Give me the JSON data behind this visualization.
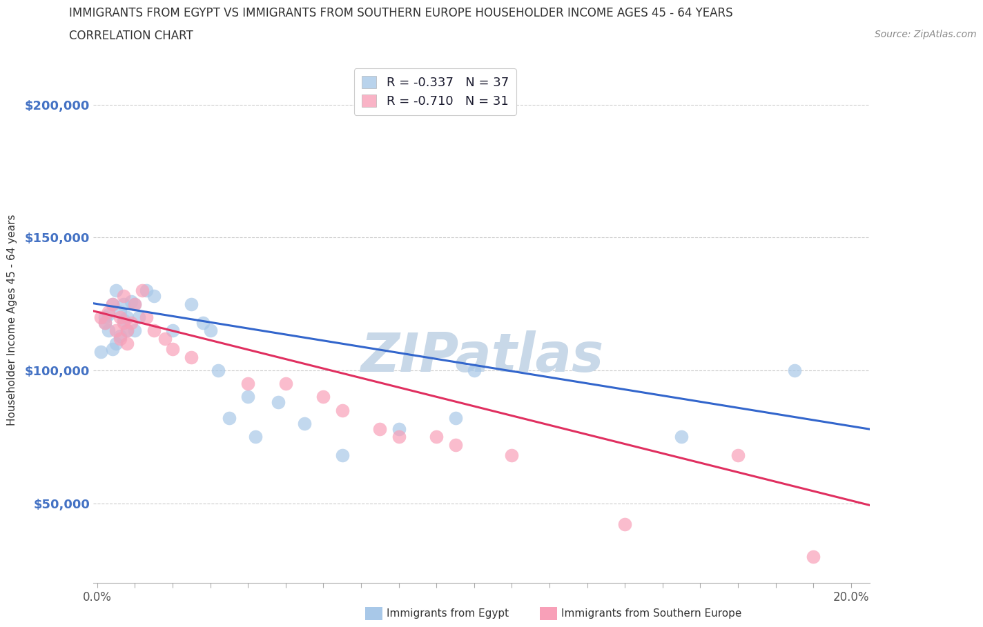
{
  "title_line1": "IMMIGRANTS FROM EGYPT VS IMMIGRANTS FROM SOUTHERN EUROPE HOUSEHOLDER INCOME AGES 45 - 64 YEARS",
  "title_line2": "CORRELATION CHART",
  "source_text": "Source: ZipAtlas.com",
  "ylabel": "Householder Income Ages 45 - 64 years",
  "xlim": [
    -0.001,
    0.205
  ],
  "ylim": [
    20000,
    218000
  ],
  "y_ticks": [
    50000,
    100000,
    150000,
    200000
  ],
  "y_tick_labels": [
    "$50,000",
    "$100,000",
    "$150,000",
    "$200,000"
  ],
  "egypt_color": "#a8c8e8",
  "southern_europe_color": "#f8a0b8",
  "egypt_R": -0.337,
  "egypt_N": 37,
  "southern_europe_R": -0.71,
  "southern_europe_N": 31,
  "egypt_x": [
    0.001,
    0.002,
    0.002,
    0.003,
    0.003,
    0.004,
    0.004,
    0.005,
    0.005,
    0.006,
    0.006,
    0.007,
    0.007,
    0.008,
    0.008,
    0.009,
    0.01,
    0.01,
    0.011,
    0.013,
    0.015,
    0.02,
    0.025,
    0.028,
    0.03,
    0.032,
    0.035,
    0.04,
    0.042,
    0.048,
    0.055,
    0.065,
    0.08,
    0.095,
    0.1,
    0.155,
    0.185
  ],
  "egypt_y": [
    107000,
    120000,
    118000,
    115000,
    121000,
    108000,
    125000,
    110000,
    130000,
    113000,
    122000,
    119000,
    125000,
    115000,
    120000,
    126000,
    115000,
    125000,
    120000,
    130000,
    128000,
    115000,
    125000,
    118000,
    115000,
    100000,
    82000,
    90000,
    75000,
    88000,
    80000,
    68000,
    78000,
    82000,
    100000,
    75000,
    100000
  ],
  "southern_europe_x": [
    0.001,
    0.002,
    0.003,
    0.004,
    0.005,
    0.006,
    0.006,
    0.007,
    0.007,
    0.008,
    0.008,
    0.009,
    0.01,
    0.012,
    0.013,
    0.015,
    0.018,
    0.02,
    0.025,
    0.04,
    0.05,
    0.06,
    0.065,
    0.075,
    0.08,
    0.09,
    0.095,
    0.11,
    0.14,
    0.17,
    0.19
  ],
  "southern_europe_y": [
    120000,
    118000,
    122000,
    125000,
    115000,
    120000,
    112000,
    118000,
    128000,
    115000,
    110000,
    118000,
    125000,
    130000,
    120000,
    115000,
    112000,
    108000,
    105000,
    95000,
    95000,
    90000,
    85000,
    78000,
    75000,
    75000,
    72000,
    68000,
    42000,
    68000,
    30000
  ],
  "watermark": "ZIPatlas",
  "watermark_color": "#c8d8e8",
  "legend_egypt_label": "R = -0.337   N = 37",
  "legend_se_label": "R = -0.710   N = 31",
  "bg_color": "#ffffff",
  "grid_color": "#cccccc",
  "title_color": "#333333",
  "axis_label_color": "#333333",
  "tick_color_y": "#4472c4",
  "tick_color_x": "#555555",
  "line_blue_color": "#3366cc",
  "line_pink_color": "#e03060",
  "legend_text_color": "#1a1a2e"
}
